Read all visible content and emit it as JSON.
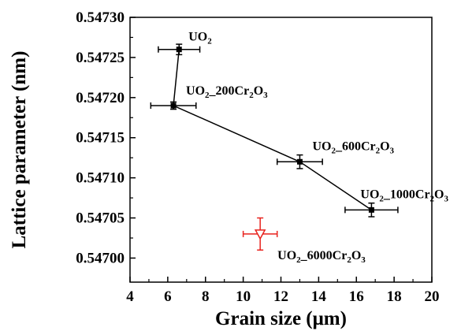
{
  "chart_data": {
    "type": "scatter",
    "xlabel": "Grain size (μm)",
    "ylabel": "Lattice parameter (nm)",
    "xlim": [
      4,
      20
    ],
    "ylim": [
      0.54697,
      0.5473
    ],
    "x_ticks": [
      4,
      6,
      8,
      10,
      12,
      14,
      16,
      18,
      20
    ],
    "x_tick_labels": [
      "4",
      "6",
      "8",
      "10",
      "12",
      "14",
      "16",
      "18",
      "20"
    ],
    "y_ticks": [
      0.547,
      0.54705,
      0.5471,
      0.54715,
      0.5472,
      0.54725,
      0.5473
    ],
    "y_tick_labels": [
      "0.54700",
      "0.54705",
      "0.54710",
      "0.54715",
      "0.54720",
      "0.54725",
      "0.54730"
    ],
    "grid": false,
    "legend": "none",
    "series": [
      {
        "color": "#000000",
        "marker": "filled-square",
        "connected": true,
        "points": [
          {
            "label": [
              "UO",
              "2"
            ],
            "x": 6.6,
            "y": 0.54726,
            "xerr": 1.1,
            "yerr": 6.5e-06
          },
          {
            "label": [
              "UO",
              "2",
              "_200Cr",
              "2",
              "O",
              "3"
            ],
            "x": 6.3,
            "y": 0.54719,
            "xerr": 1.2,
            "yerr": 4.5e-06
          },
          {
            "label": [
              "UO",
              "2",
              "_600Cr",
              "2",
              "O",
              "3"
            ],
            "x": 13.0,
            "y": 0.54712,
            "xerr": 1.2,
            "yerr": 8.5e-06
          },
          {
            "label": [
              "UO",
              "2",
              "_1000Cr",
              "2",
              "O",
              "3"
            ],
            "x": 16.8,
            "y": 0.54706,
            "xerr": 1.4,
            "yerr": 8.5e-06
          }
        ]
      },
      {
        "color": "#e8231e",
        "marker": "open-triangle-down",
        "connected": false,
        "points": [
          {
            "label": [
              "UO",
              "2",
              "_6000Cr",
              "2",
              "O",
              "3"
            ],
            "x": 10.9,
            "y": 0.54703,
            "xerr": 0.9,
            "yerr": 2e-05
          }
        ]
      }
    ]
  }
}
